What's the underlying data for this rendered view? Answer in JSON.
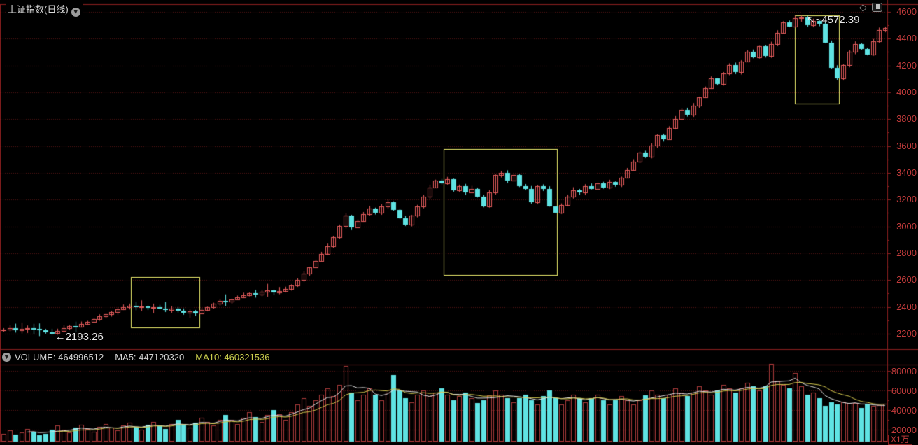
{
  "header": {
    "title": "上证指数(日线)",
    "dropdown_icon": "chevron-down-circle",
    "right_icons": [
      {
        "name": "diamond-icon",
        "glyph": "◇"
      },
      {
        "name": "window-icon",
        "glyph": "window"
      }
    ]
  },
  "volume_header": {
    "dropdown_icon": "chevron-down-circle",
    "volume_label": "VOLUME: 464996512",
    "ma5_label": "MA5: 447120320",
    "ma10_label": "MA10: 460321536"
  },
  "colors": {
    "background": "#000000",
    "frame": "#8b1f1f",
    "grid": "#551414",
    "axis_text": "#c23b3b",
    "candle_up": "#e25b5b",
    "candle_down": "#5fe3e3",
    "volume_up": "#a83a3a",
    "volume_down": "#5fe3e3",
    "ma5_line": "#e0e0e0",
    "ma10_line": "#d4c84e",
    "highlight_box": "#eded6e",
    "annotation_text": "#e8e8e8"
  },
  "chart_data": {
    "type": "candlestick+volume",
    "title": "上证指数(日线)",
    "price_axis": {
      "min": 2200,
      "max": 4600,
      "step": 200,
      "labels": [
        "4600",
        "4400",
        "4200",
        "4000",
        "3800",
        "3600",
        "3400",
        "3200",
        "3000",
        "2800",
        "2600",
        "2400",
        "2200"
      ]
    },
    "volume_axis": {
      "labels": [
        "80000",
        "60000",
        "40000",
        "20000"
      ],
      "unit": "X1万",
      "max": 80000,
      "step": 20000
    },
    "closes": [
      2232,
      2240,
      2228,
      2236,
      2244,
      2234,
      2224,
      2212,
      2203,
      2222,
      2242,
      2258,
      2250,
      2272,
      2290,
      2308,
      2328,
      2344,
      2362,
      2382,
      2398,
      2408,
      2398,
      2406,
      2392,
      2400,
      2386,
      2376,
      2386,
      2370,
      2356,
      2366,
      2352,
      2376,
      2398,
      2422,
      2446,
      2440,
      2456,
      2472,
      2488,
      2502,
      2494,
      2512,
      2522,
      2506,
      2516,
      2532,
      2562,
      2602,
      2648,
      2694,
      2744,
      2796,
      2852,
      2922,
      3002,
      3082,
      2992,
      3042,
      3092,
      3132,
      3102,
      3152,
      3182,
      3122,
      3062,
      3012,
      3082,
      3152,
      3222,
      3292,
      3342,
      3322,
      3352,
      3272,
      3302,
      3252,
      3282,
      3222,
      3152,
      3252,
      3382,
      3402,
      3342,
      3382,
      3302,
      3282,
      3182,
      3302,
      3282,
      3152,
      3102,
      3162,
      3222,
      3272,
      3252,
      3302,
      3282,
      3322,
      3292,
      3332,
      3312,
      3362,
      3422,
      3482,
      3552,
      3522,
      3602,
      3682,
      3652,
      3732,
      3802,
      3872,
      3832,
      3902,
      3962,
      4032,
      4102,
      4062,
      4142,
      4202,
      4152,
      4232,
      4302,
      4262,
      4342,
      4272,
      4362,
      4442,
      4522,
      4492,
      4552,
      4558,
      4502,
      4532,
      4512,
      4372,
      4182,
      4102,
      4202,
      4302,
      4362,
      4322,
      4282,
      4382,
      4462,
      4482
    ],
    "volumes": [
      16000,
      19000,
      15000,
      17000,
      21000,
      18000,
      14000,
      16000,
      20000,
      24000,
      20000,
      17000,
      22000,
      25000,
      21000,
      18000,
      23000,
      26000,
      22000,
      19000,
      24000,
      27000,
      23000,
      20000,
      25000,
      28000,
      24000,
      21000,
      26000,
      30000,
      26000,
      22000,
      27000,
      32000,
      28000,
      24000,
      30000,
      35000,
      30000,
      26000,
      32000,
      38000,
      33000,
      28000,
      35000,
      40000,
      36000,
      30000,
      38000,
      46000,
      52000,
      44000,
      50000,
      56000,
      62000,
      54000,
      66000,
      85000,
      58000,
      50000,
      56000,
      62000,
      56000,
      50000,
      58000,
      76000,
      60000,
      52000,
      48000,
      56000,
      60000,
      54000,
      58000,
      62000,
      56000,
      50000,
      54000,
      58000,
      52000,
      47000,
      50000,
      55000,
      60000,
      56000,
      52000,
      48000,
      52000,
      56000,
      50000,
      46000,
      54000,
      60000,
      52000,
      46000,
      50000,
      56000,
      52000,
      48000,
      52000,
      56000,
      50000,
      46000,
      50000,
      54000,
      50000,
      46000,
      50000,
      55000,
      60000,
      56000,
      52000,
      56000,
      62000,
      58000,
      54000,
      58000,
      64000,
      60000,
      56000,
      60000,
      66000,
      62000,
      58000,
      62000,
      68000,
      64000,
      60000,
      64000,
      87000,
      70000,
      66000,
      62000,
      78000,
      64000,
      56000,
      58000,
      52000,
      44000,
      48000,
      46000,
      48320,
      47000,
      47500,
      42000,
      46000,
      44000,
      45000,
      46500
    ],
    "ma5_last": 44700,
    "ma10_last": 46032,
    "annotations": {
      "low": {
        "index": 8,
        "value": 2193.26,
        "text": "←2193.26"
      },
      "high": {
        "index": 133,
        "value": 4572.39,
        "text": "↖~4572.39"
      }
    },
    "highlight_boxes": [
      {
        "start_index": 21.6,
        "end_index": 32.3,
        "top_price": 2623,
        "bottom_price": 2247
      },
      {
        "start_index": 73.7,
        "end_index": 91.9,
        "top_price": 3577,
        "bottom_price": 2638
      },
      {
        "start_index": 132.3,
        "end_index": 139.0,
        "top_price": 4574,
        "bottom_price": 3917
      }
    ],
    "legend_position": "none",
    "grid": "dotted-horizontal"
  }
}
